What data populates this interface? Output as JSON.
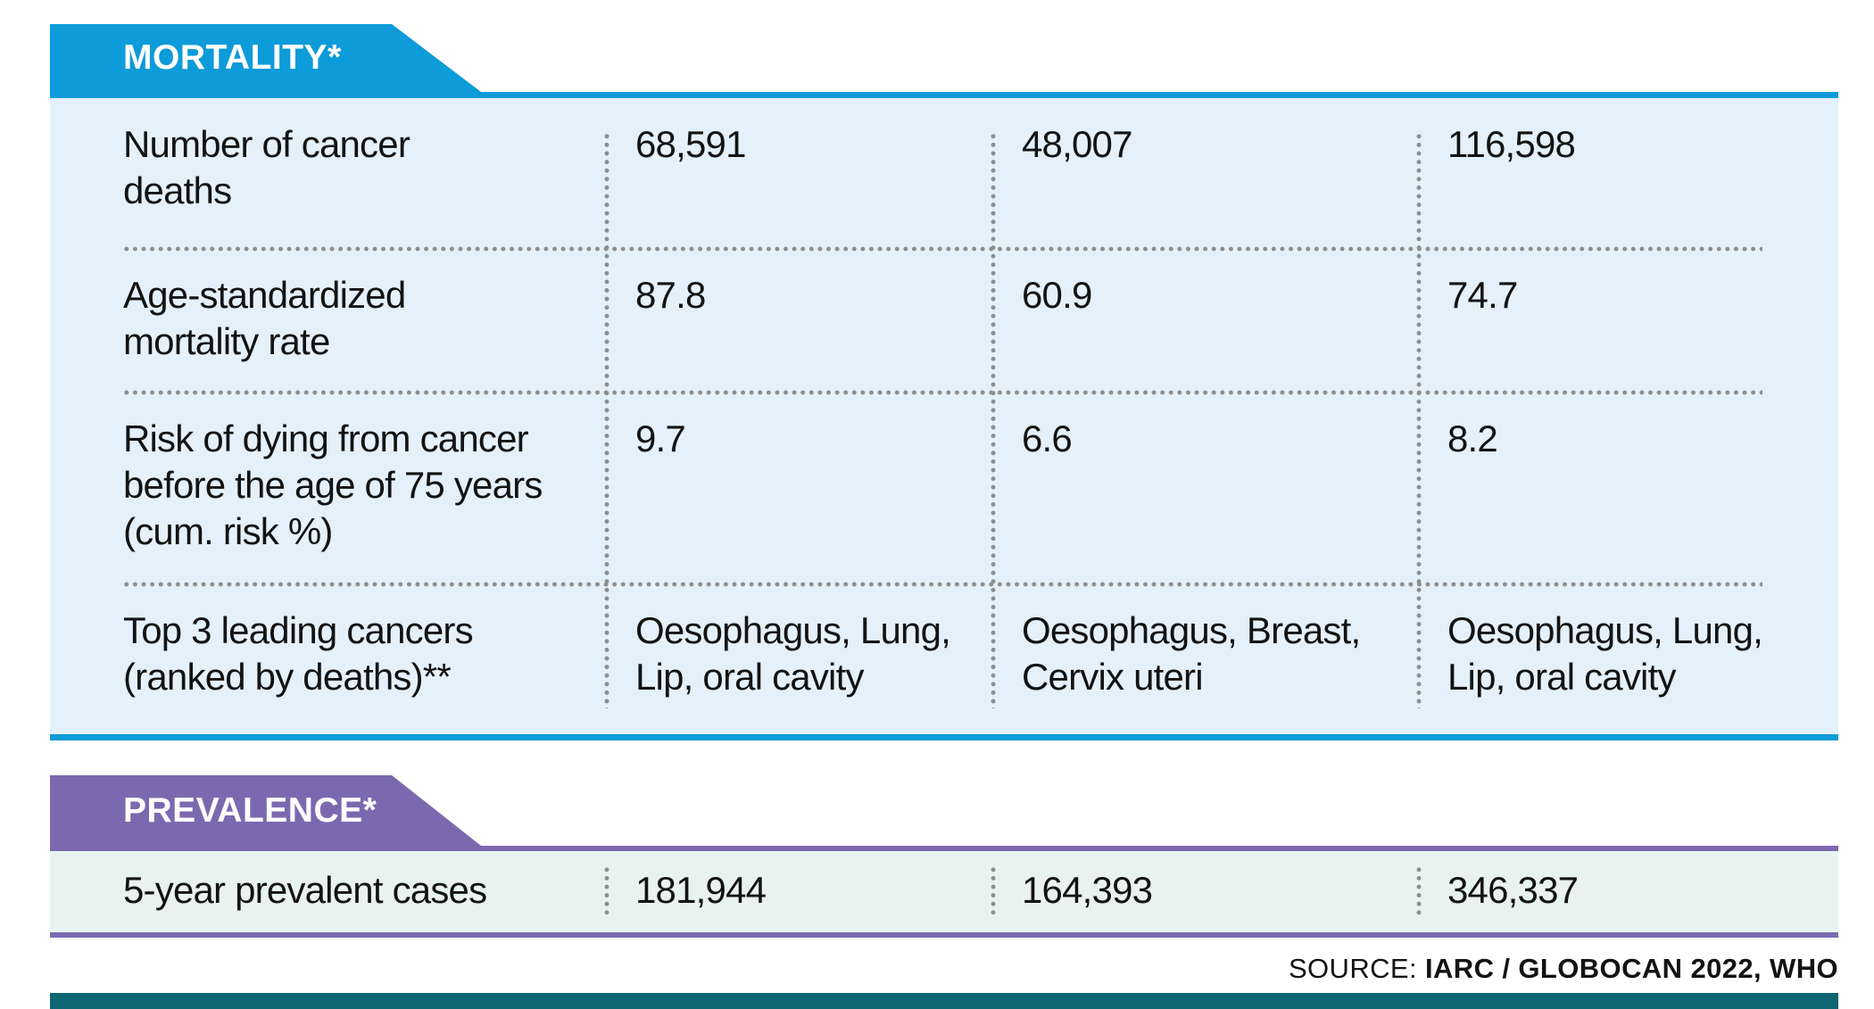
{
  "colors": {
    "accent-mortality": "#0d9bd9",
    "bg-mortality": "#e4f1fb",
    "accent-prevalence": "#7b69b0",
    "bg-prevalence": "#e8f3f0",
    "bar-footer": "#0e6672",
    "dot": "#8e8e8e",
    "text": "#131313",
    "tab-text": "#ffffff"
  },
  "mortality": {
    "title": "MORTALITY*",
    "rows": [
      {
        "label": "Number of cancer\ndeaths",
        "values": [
          "68,591",
          "48,007",
          "116,598"
        ]
      },
      {
        "label": "Age-standardized\nmortality rate",
        "values": [
          "87.8",
          "60.9",
          "74.7"
        ]
      },
      {
        "label": "Risk of dying from cancer\nbefore the age of 75 years\n(cum. risk %)",
        "values": [
          "9.7",
          "6.6",
          "8.2"
        ]
      },
      {
        "label": "Top 3 leading cancers\n(ranked by deaths)**",
        "values": [
          "Oesophagus, Lung,\nLip, oral cavity",
          "Oesophagus, Breast,\nCervix uteri",
          "Oesophagus, Lung,\nLip, oral cavity"
        ]
      }
    ]
  },
  "prevalence": {
    "title": "PREVALENCE*",
    "rows": [
      {
        "label": "5-year prevalent cases",
        "values": [
          "181,944",
          "164,393",
          "346,337"
        ]
      }
    ]
  },
  "footer": {
    "source_label": "SOURCE: ",
    "source_value": "IARC / GLOBOCAN 2022, WHO"
  },
  "chart_data": {
    "type": "table",
    "sections": [
      {
        "title": "MORTALITY*",
        "rows": [
          {
            "label": "Number of cancer deaths",
            "values": [
              68591,
              48007,
              116598
            ]
          },
          {
            "label": "Age-standardized mortality rate",
            "values": [
              87.8,
              60.9,
              74.7
            ]
          },
          {
            "label": "Risk of dying from cancer before the age of 75 years (cum. risk %)",
            "values": [
              9.7,
              6.6,
              8.2
            ]
          },
          {
            "label": "Top 3 leading cancers (ranked by deaths)**",
            "values": [
              "Oesophagus, Lung, Lip, oral cavity",
              "Oesophagus, Breast, Cervix uteri",
              "Oesophagus, Lung, Lip, oral cavity"
            ]
          }
        ]
      },
      {
        "title": "PREVALENCE*",
        "rows": [
          {
            "label": "5-year prevalent cases",
            "values": [
              181944,
              164393,
              346337
            ]
          }
        ]
      }
    ],
    "columns": 3,
    "source": "IARC / GLOBOCAN 2022, WHO"
  }
}
